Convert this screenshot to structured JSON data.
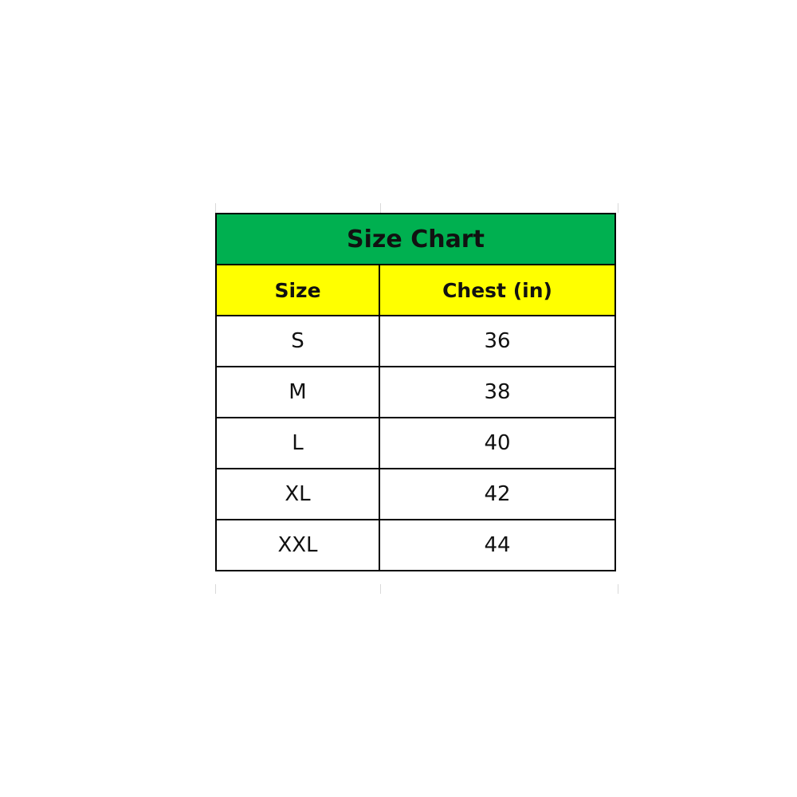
{
  "table": {
    "title": "Size Chart",
    "headers": [
      "Size",
      "Chest (in)"
    ],
    "rows": [
      [
        "S",
        "36"
      ],
      [
        "M",
        "38"
      ],
      [
        "L",
        "40"
      ],
      [
        "XL",
        "42"
      ],
      [
        "XXL",
        "44"
      ]
    ]
  },
  "colors": {
    "title_bg": "#00B050",
    "header_bg": "#FFFF00"
  }
}
